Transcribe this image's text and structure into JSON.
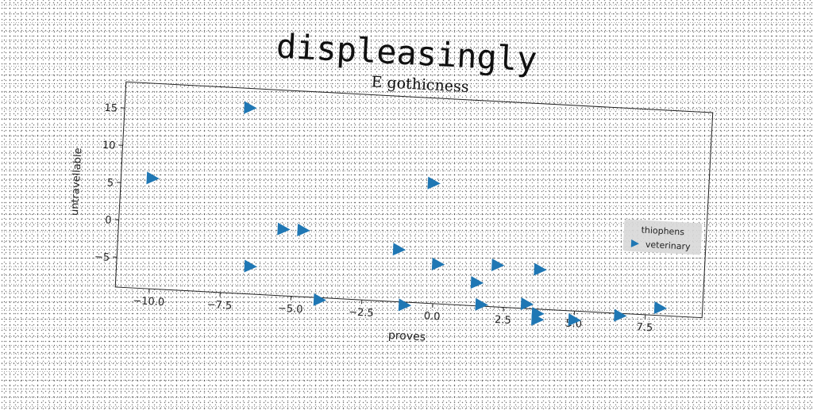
{
  "page": {
    "title": "displeasingly"
  },
  "chart_data": {
    "type": "scatter",
    "title": "E gothicness",
    "xlabel": "proves",
    "ylabel": "untravellable",
    "xlim": [
      -11.2,
      9.5
    ],
    "ylim": [
      -9.0,
      18.5
    ],
    "xticks": [
      -10.0,
      -7.5,
      -5.0,
      -2.5,
      0.0,
      2.5,
      5.0,
      7.5
    ],
    "xtick_labels": [
      "−10.0",
      "−7.5",
      "−5.0",
      "−2.5",
      "0.0",
      "2.5",
      "5.0",
      "7.5"
    ],
    "yticks": [
      -5,
      0,
      5,
      10,
      15
    ],
    "ytick_labels": [
      "−5",
      "0",
      "5",
      "10",
      "15"
    ],
    "grid": false,
    "legend": {
      "title": "thiophens",
      "placement": "right",
      "entries": [
        "veterinary"
      ]
    },
    "marker": "triangle-right",
    "series": [
      {
        "name": "veterinary",
        "color": "#1f77b4",
        "points": [
          [
            -10.1,
            5.8
          ],
          [
            -6.8,
            15.9
          ],
          [
            -6.5,
            -5.3
          ],
          [
            -5.4,
            -0.1
          ],
          [
            -4.7,
            -0.1
          ],
          [
            -4.0,
            -9.3
          ],
          [
            -1.3,
            -2.0
          ],
          [
            -1.0,
            -9.4
          ],
          [
            -0.2,
            7.1
          ],
          [
            0.1,
            -3.7
          ],
          [
            1.5,
            -5.9
          ],
          [
            1.7,
            -8.8
          ],
          [
            2.2,
            -3.4
          ],
          [
            3.3,
            -8.4
          ],
          [
            3.7,
            -3.7
          ],
          [
            3.7,
            -9.6
          ],
          [
            3.7,
            -10.4
          ],
          [
            5.0,
            -10.2
          ],
          [
            6.6,
            -9.3
          ],
          [
            8.0,
            -8.0
          ]
        ]
      }
    ]
  }
}
